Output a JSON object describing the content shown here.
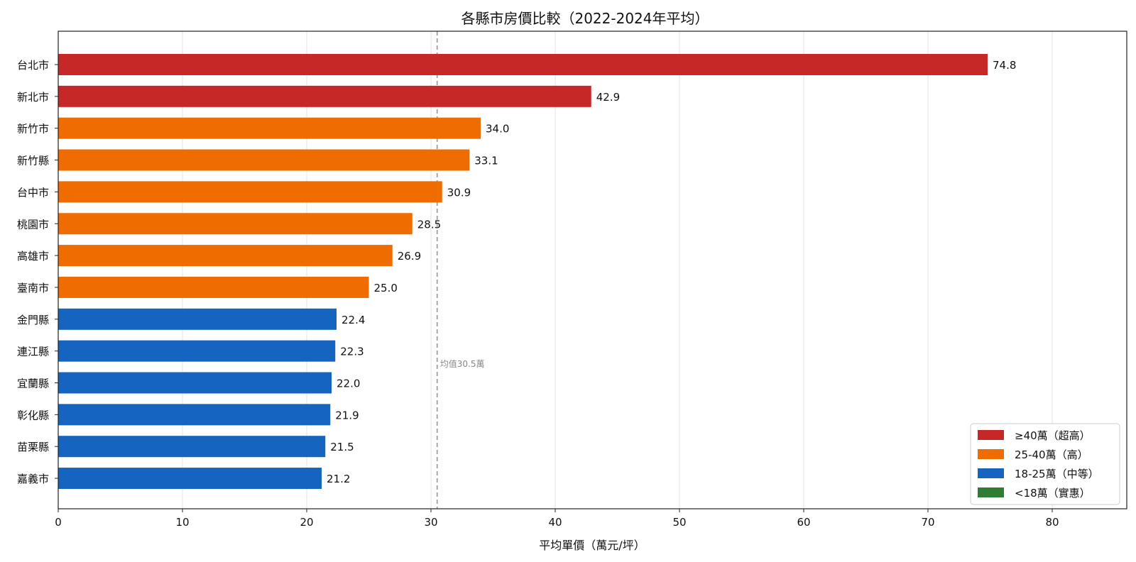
{
  "chart_data": {
    "type": "bar",
    "orientation": "horizontal",
    "title": "各縣市房價比較（2022-2024年平均）",
    "xlabel": "平均單價（萬元/坪）",
    "ylabel": "",
    "xlim": [
      0,
      86
    ],
    "xticks": [
      0,
      10,
      20,
      30,
      40,
      50,
      60,
      70,
      80
    ],
    "grid": "vertical",
    "categories": [
      "台北市",
      "新北市",
      "新竹市",
      "新竹縣",
      "台中市",
      "桃園市",
      "高雄市",
      "臺南市",
      "金門縣",
      "連江縣",
      "宜蘭縣",
      "彰化縣",
      "苗栗縣",
      "嘉義市"
    ],
    "values": [
      74.8,
      42.9,
      34.0,
      33.1,
      30.9,
      28.5,
      26.9,
      25.0,
      22.4,
      22.3,
      22.0,
      21.9,
      21.5,
      21.2
    ],
    "value_labels": [
      "74.8",
      "42.9",
      "34.0",
      "33.1",
      "30.9",
      "28.5",
      "26.9",
      "25.0",
      "22.4",
      "22.3",
      "22.0",
      "21.9",
      "21.5",
      "21.2"
    ],
    "tiers": [
      "超高",
      "超高",
      "高",
      "高",
      "高",
      "高",
      "高",
      "高",
      "中等",
      "中等",
      "中等",
      "中等",
      "中等",
      "中等"
    ],
    "mean": {
      "value": 30.5,
      "label": "均值30.5萬",
      "color": "#aaaaaa",
      "style": "dashed"
    },
    "legend": {
      "placement": "lower-right",
      "entries": [
        {
          "label": "≥40萬（超高）",
          "color": "#c62828"
        },
        {
          "label": "25-40萬（高）",
          "color": "#ef6c00"
        },
        {
          "label": "18-25萬（中等）",
          "color": "#1565c0"
        },
        {
          "label": "<18萬（實惠）",
          "color": "#2e7d32"
        }
      ]
    },
    "colors": {
      "超高": "#c62828",
      "高": "#ef6c00",
      "中等": "#1565c0",
      "實惠": "#2e7d32"
    }
  }
}
